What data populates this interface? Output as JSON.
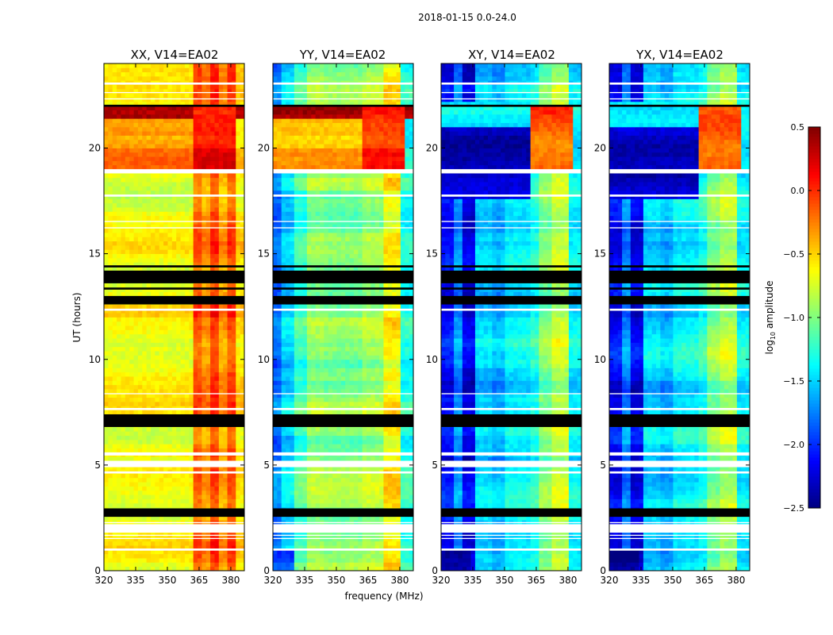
{
  "chart_data": {
    "type": "heatmap",
    "title": "2018-01-15 0.0-24.0",
    "xlabel": "frequency (MHz)",
    "ylabel": "UT (hours)",
    "xlim": [
      320,
      386.4
    ],
    "ylim": [
      0,
      24
    ],
    "xticks": [
      320,
      335,
      350,
      365,
      380
    ],
    "yticks": [
      0,
      5,
      10,
      15,
      20
    ],
    "colorbar": {
      "label_main": "log",
      "label_sub": "10",
      "label_rest": " amplitude",
      "range": [
        -2.5,
        0.5
      ],
      "ticks": [
        "0.5",
        "0.0",
        "−0.5",
        "−1.0",
        "−1.5",
        "−2.0",
        "−2.5"
      ],
      "tick_values": [
        0.5,
        0.0,
        -0.5,
        -1.0,
        -1.5,
        -2.0,
        -2.5
      ],
      "colormap": "jet"
    },
    "flagged_white_hours": [
      [
        0.95,
        1.05
      ],
      [
        1.5,
        1.55
      ],
      [
        1.65,
        1.7
      ],
      [
        1.8,
        2.2
      ],
      [
        2.25,
        2.3
      ],
      [
        4.6,
        4.7
      ],
      [
        4.9,
        5.2
      ],
      [
        5.45,
        5.6
      ],
      [
        7.6,
        7.7
      ],
      [
        8.35,
        8.4
      ],
      [
        12.3,
        12.4
      ],
      [
        16.2,
        16.25
      ],
      [
        16.5,
        16.55
      ],
      [
        17.7,
        17.8
      ],
      [
        18.8,
        19.0
      ],
      [
        22.3,
        22.35
      ],
      [
        22.6,
        22.65
      ],
      [
        23.0,
        23.1
      ]
    ],
    "flagged_black_hours": [
      [
        2.55,
        2.95
      ],
      [
        6.8,
        7.4
      ],
      [
        12.6,
        13.0
      ],
      [
        13.3,
        13.4
      ],
      [
        13.6,
        14.2
      ],
      [
        14.35,
        14.45
      ],
      [
        21.95,
        22.05
      ]
    ],
    "panels": [
      {
        "title": "XX, V14=EA02",
        "base": -0.65,
        "profile": [
          [
            362,
            366,
            -0.15
          ],
          [
            366,
            371,
            -0.3
          ],
          [
            371,
            375,
            -0.05
          ],
          [
            375,
            378,
            -0.35
          ],
          [
            378,
            382,
            -0.1
          ],
          [
            382,
            386.4,
            -0.55
          ]
        ],
        "events": [
          [
            19.0,
            21.4,
            320,
            362,
            -0.3
          ],
          [
            21.4,
            22.0,
            320,
            386.4,
            0.45
          ],
          [
            19.0,
            22.0,
            362,
            382,
            0.1
          ]
        ]
      },
      {
        "title": "YY, V14=EA02",
        "base": -1.1,
        "profile": [
          [
            320,
            325,
            -1.8
          ],
          [
            325,
            330,
            -1.5
          ],
          [
            330,
            336,
            -1.2
          ],
          [
            336,
            345,
            -0.95
          ],
          [
            345,
            362,
            -1.0
          ],
          [
            362,
            372,
            -0.9
          ],
          [
            372,
            380,
            -0.6
          ],
          [
            380,
            386.4,
            -1.3
          ]
        ],
        "events": [
          [
            19.0,
            21.4,
            320,
            362,
            -0.35
          ],
          [
            21.4,
            22.0,
            320,
            386.4,
            0.4
          ],
          [
            19.0,
            22.0,
            362,
            382,
            0.05
          ],
          [
            0,
            1,
            320,
            330,
            -2.0
          ]
        ]
      },
      {
        "title": "XY, V14=EA02",
        "base": -1.9,
        "profile": [
          [
            320,
            326,
            -2.1
          ],
          [
            326,
            331,
            -1.7
          ],
          [
            331,
            336,
            -2.2
          ],
          [
            336,
            345,
            -1.5
          ],
          [
            345,
            350,
            -1.6
          ],
          [
            350,
            362,
            -1.4
          ],
          [
            362,
            366,
            -1.3
          ],
          [
            366,
            373,
            -1.0
          ],
          [
            373,
            380,
            -0.8
          ],
          [
            380,
            386.4,
            -1.4
          ]
        ],
        "events": [
          [
            17.5,
            21.0,
            320,
            362,
            -2.3
          ],
          [
            21.0,
            22.2,
            320,
            362,
            -1.5
          ],
          [
            19.0,
            22.0,
            362,
            382,
            -0.15
          ],
          [
            0,
            1,
            320,
            335,
            -2.4
          ]
        ]
      },
      {
        "title": "YX, V14=EA02",
        "base": -1.9,
        "profile": [
          [
            320,
            326,
            -2.15
          ],
          [
            326,
            331,
            -1.75
          ],
          [
            331,
            336,
            -2.2
          ],
          [
            336,
            345,
            -1.5
          ],
          [
            345,
            350,
            -1.6
          ],
          [
            350,
            362,
            -1.4
          ],
          [
            362,
            366,
            -1.3
          ],
          [
            366,
            373,
            -1.0
          ],
          [
            373,
            380,
            -0.85
          ],
          [
            380,
            386.4,
            -1.4
          ]
        ],
        "events": [
          [
            17.5,
            21.0,
            320,
            362,
            -2.3
          ],
          [
            21.0,
            22.2,
            320,
            362,
            -1.5
          ],
          [
            19.0,
            22.0,
            362,
            382,
            -0.15
          ],
          [
            0,
            1,
            320,
            335,
            -2.4
          ]
        ]
      }
    ]
  }
}
